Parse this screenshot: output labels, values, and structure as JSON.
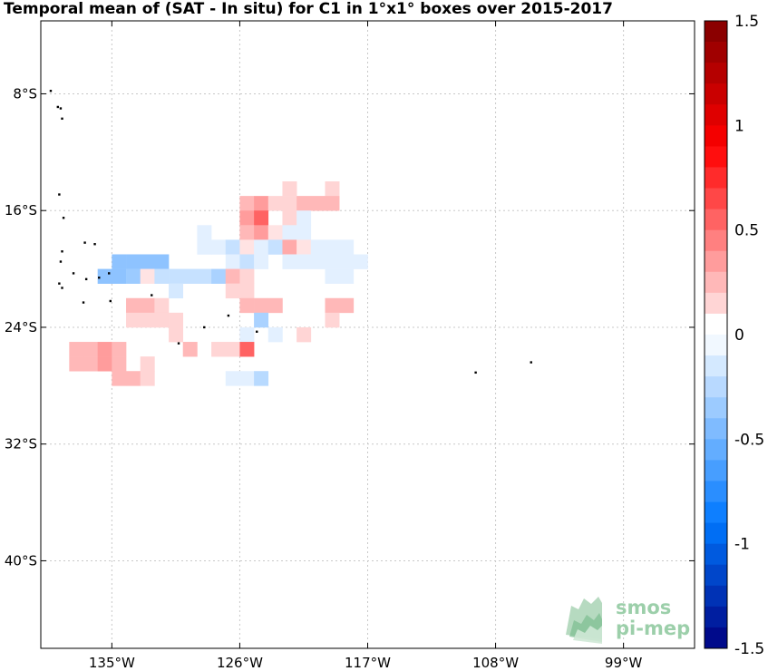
{
  "chart_data": {
    "type": "heatmap",
    "title": "Temporal mean of (SAT - In situ) for C1 in 1°x1° boxes over 2015-2017",
    "xlabel": "",
    "ylabel": "",
    "xlim": [
      -140,
      -94
    ],
    "ylim": [
      -46,
      -3
    ],
    "grid": true,
    "x_ticks": [
      {
        "value": -135,
        "label": "135°W"
      },
      {
        "value": -126,
        "label": "126°W"
      },
      {
        "value": -117,
        "label": "117°W"
      },
      {
        "value": -108,
        "label": "108°W"
      },
      {
        "value": -99,
        "label": "99°W"
      }
    ],
    "y_ticks": [
      {
        "value": -8,
        "label": "8°S"
      },
      {
        "value": -16,
        "label": "16°S"
      },
      {
        "value": -24,
        "label": "24°S"
      },
      {
        "value": -32,
        "label": "32°S"
      },
      {
        "value": -40,
        "label": "40°S"
      }
    ],
    "colorbar": {
      "min": -1.5,
      "max": 1.5,
      "levels": 30,
      "ticks": [
        {
          "value": 1.5,
          "label": "1.5"
        },
        {
          "value": 1,
          "label": "1"
        },
        {
          "value": 0.5,
          "label": "0.5"
        },
        {
          "value": 0,
          "label": "0"
        },
        {
          "value": -0.5,
          "label": "-0.5"
        },
        {
          "value": -1,
          "label": "-1"
        },
        {
          "value": -1.5,
          "label": "-1.5"
        }
      ]
    },
    "cells_note": "each cell: [lon_west, lat_north, value]",
    "cells": [
      [
        -123,
        -14,
        0.15
      ],
      [
        -120,
        -14,
        0.15
      ],
      [
        -126,
        -15,
        0.25
      ],
      [
        -125,
        -15,
        0.35
      ],
      [
        -124,
        -15,
        0.15
      ],
      [
        -123,
        -15,
        0.15
      ],
      [
        -122,
        -15,
        0.25
      ],
      [
        -121,
        -15,
        0.25
      ],
      [
        -120,
        -15,
        0.25
      ],
      [
        -126,
        -16,
        0.35
      ],
      [
        -125,
        -16,
        0.55
      ],
      [
        -123,
        -16,
        0.15
      ],
      [
        -122,
        -16,
        -0.1
      ],
      [
        -129,
        -17,
        -0.1
      ],
      [
        -126,
        -17,
        0.25
      ],
      [
        -125,
        -17,
        0.35
      ],
      [
        -124,
        -17,
        0.1
      ],
      [
        -123,
        -17,
        -0.1
      ],
      [
        -122,
        -17,
        -0.1
      ],
      [
        -129,
        -18,
        -0.1
      ],
      [
        -128,
        -18,
        -0.1
      ],
      [
        -127,
        -18,
        -0.2
      ],
      [
        -126,
        -18,
        0.1
      ],
      [
        -125,
        -18,
        -0.1
      ],
      [
        -124,
        -18,
        -0.2
      ],
      [
        -123,
        -18,
        0.3
      ],
      [
        -122,
        -18,
        0.1
      ],
      [
        -121,
        -18,
        -0.1
      ],
      [
        -120,
        -18,
        -0.1
      ],
      [
        -119,
        -18,
        -0.1
      ],
      [
        -135,
        -19,
        -0.4
      ],
      [
        -134,
        -19,
        -0.4
      ],
      [
        -133,
        -19,
        -0.4
      ],
      [
        -132,
        -19,
        -0.4
      ],
      [
        -127,
        -19,
        -0.1
      ],
      [
        -126,
        -19,
        -0.2
      ],
      [
        -125,
        -19,
        -0.1
      ],
      [
        -123,
        -19,
        -0.1
      ],
      [
        -122,
        -19,
        -0.1
      ],
      [
        -121,
        -19,
        -0.1
      ],
      [
        -120,
        -19,
        -0.1
      ],
      [
        -119,
        -19,
        -0.1
      ],
      [
        -118,
        -19,
        -0.1
      ],
      [
        -136,
        -20,
        -0.4
      ],
      [
        -135,
        -20,
        -0.4
      ],
      [
        -134,
        -20,
        -0.35
      ],
      [
        -133,
        -20,
        0.1
      ],
      [
        -132,
        -20,
        -0.2
      ],
      [
        -131,
        -20,
        -0.2
      ],
      [
        -130,
        -20,
        -0.2
      ],
      [
        -129,
        -20,
        -0.2
      ],
      [
        -128,
        -20,
        -0.3
      ],
      [
        -127,
        -20,
        0.25
      ],
      [
        -126,
        -20,
        0.15
      ],
      [
        -120,
        -20,
        -0.1
      ],
      [
        -119,
        -20,
        -0.1
      ],
      [
        -131,
        -21,
        -0.15
      ],
      [
        -127,
        -21,
        0.15
      ],
      [
        -126,
        -21,
        0.15
      ],
      [
        -134,
        -22,
        0.25
      ],
      [
        -133,
        -22,
        0.25
      ],
      [
        -132,
        -22,
        0.15
      ],
      [
        -126,
        -22,
        0.25
      ],
      [
        -125,
        -22,
        0.25
      ],
      [
        -124,
        -22,
        0.25
      ],
      [
        -120,
        -22,
        0.25
      ],
      [
        -119,
        -22,
        0.25
      ],
      [
        -134,
        -23,
        0.15
      ],
      [
        -133,
        -23,
        0.15
      ],
      [
        -132,
        -23,
        0.15
      ],
      [
        -131,
        -23,
        0.15
      ],
      [
        -125,
        -23,
        -0.3
      ],
      [
        -120,
        -23,
        0.15
      ],
      [
        -131,
        -24,
        0.15
      ],
      [
        -126,
        -24,
        -0.1
      ],
      [
        -124,
        -24,
        -0.1
      ],
      [
        -122,
        -24,
        0.15
      ],
      [
        -138,
        -25,
        0.25
      ],
      [
        -137,
        -25,
        0.25
      ],
      [
        -136,
        -25,
        0.35
      ],
      [
        -135,
        -25,
        0.25
      ],
      [
        -130,
        -25,
        0.25
      ],
      [
        -128,
        -25,
        0.15
      ],
      [
        -127,
        -25,
        0.15
      ],
      [
        -126,
        -25,
        0.55
      ],
      [
        -138,
        -26,
        0.25
      ],
      [
        -137,
        -26,
        0.25
      ],
      [
        -136,
        -26,
        0.35
      ],
      [
        -135,
        -26,
        0.25
      ],
      [
        -133,
        -26,
        0.15
      ],
      [
        -135,
        -27,
        0.25
      ],
      [
        -134,
        -27,
        0.25
      ],
      [
        -133,
        -27,
        0.15
      ],
      [
        -127,
        -27,
        -0.1
      ],
      [
        -126,
        -27,
        -0.1
      ],
      [
        -125,
        -27,
        -0.25
      ]
    ],
    "land_dots_note": "small island specks: [lon, lat]",
    "land_dots": [
      [
        -139.3,
        -7.8
      ],
      [
        -138.8,
        -8.9
      ],
      [
        -138.6,
        -9.0
      ],
      [
        -138.5,
        -9.7
      ],
      [
        -138.7,
        -14.9
      ],
      [
        -138.4,
        -16.5
      ],
      [
        -136.9,
        -18.2
      ],
      [
        -136.2,
        -18.3
      ],
      [
        -138.5,
        -18.8
      ],
      [
        -138.6,
        -19.5
      ],
      [
        -137.7,
        -20.3
      ],
      [
        -136.8,
        -20.7
      ],
      [
        -135.9,
        -20.6
      ],
      [
        -135.2,
        -20.3
      ],
      [
        -138.7,
        -21.0
      ],
      [
        -138.5,
        -21.3
      ],
      [
        -137.0,
        -22.3
      ],
      [
        -135.1,
        -22.2
      ],
      [
        -132.2,
        -21.8
      ],
      [
        -128.5,
        -24.0
      ],
      [
        -126.8,
        -23.2
      ],
      [
        -124.8,
        -24.3
      ],
      [
        -130.3,
        -25.1
      ],
      [
        -109.4,
        -27.1
      ],
      [
        -105.5,
        -26.4
      ]
    ],
    "logo": {
      "line1": "smos",
      "line2": "pi-mep"
    }
  }
}
